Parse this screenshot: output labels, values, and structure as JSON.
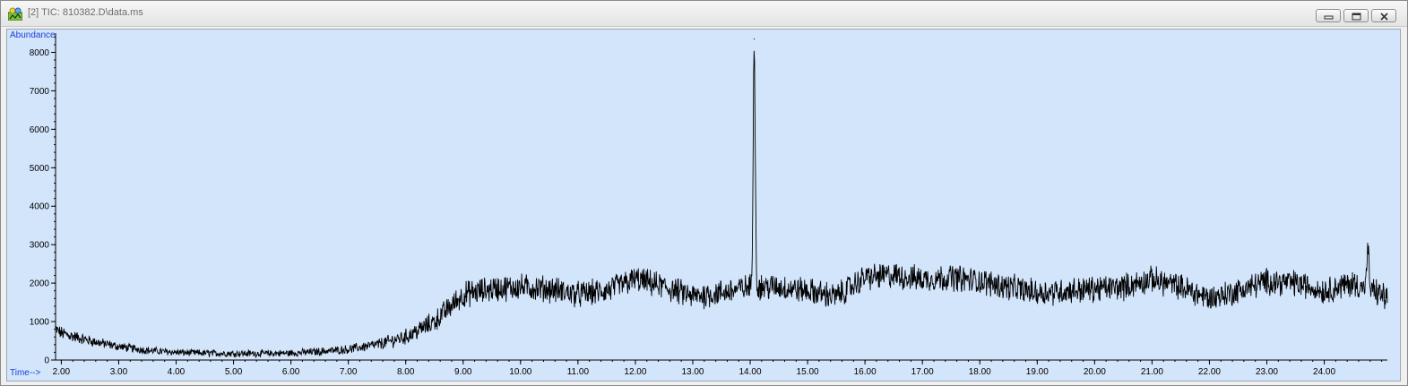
{
  "window": {
    "title": "[2] TIC: 810382.D\\data.ms",
    "icons": [
      "app-chromatogram-icon",
      "minimize-icon",
      "restore-icon",
      "close-icon"
    ]
  },
  "colors": {
    "plot_background": "#d3e5fb",
    "trace": "#000000",
    "axis_label": "#1a3fd6"
  },
  "chart_data": {
    "type": "line",
    "title": "",
    "xlabel": "Time-->",
    "ylabel": "Abundance",
    "xlim": [
      1.9,
      25.1
    ],
    "ylim": [
      0,
      8500
    ],
    "x_ticks": [
      "2.00",
      "3.00",
      "4.00",
      "5.00",
      "6.00",
      "7.00",
      "8.00",
      "9.00",
      "10.00",
      "11.00",
      "12.00",
      "13.00",
      "14.00",
      "15.00",
      "16.00",
      "17.00",
      "18.00",
      "19.00",
      "20.00",
      "21.00",
      "22.00",
      "23.00",
      "24.00"
    ],
    "y_ticks": [
      "0",
      "1000",
      "2000",
      "3000",
      "4000",
      "5000",
      "6000",
      "7000",
      "8000"
    ],
    "grid": false,
    "series": [
      {
        "baseline": {
          "x": [
            1.9,
            2.0,
            2.5,
            3.0,
            3.5,
            4.0,
            4.5,
            5.0,
            5.5,
            6.0,
            6.5,
            7.0,
            7.5,
            8.0,
            8.5,
            9.0,
            9.5,
            10.0,
            10.5,
            11.0,
            11.5,
            12.0,
            12.5,
            13.0,
            13.5,
            14.0,
            14.5,
            15.0,
            15.5,
            16.0,
            16.5,
            17.0,
            17.5,
            18.0,
            18.5,
            19.0,
            19.5,
            20.0,
            20.5,
            21.0,
            21.5,
            22.0,
            22.5,
            23.0,
            23.5,
            24.0,
            24.5,
            25.0,
            25.1
          ],
          "y": [
            800,
            700,
            500,
            350,
            250,
            200,
            180,
            170,
            170,
            180,
            220,
            280,
            400,
            600,
            1000,
            1700,
            1850,
            1900,
            1850,
            1700,
            1800,
            2100,
            1900,
            1650,
            1750,
            1900,
            1900,
            1800,
            1650,
            2150,
            2200,
            2100,
            2150,
            2050,
            1900,
            1750,
            1800,
            1850,
            1900,
            2100,
            1900,
            1600,
            1800,
            2050,
            2000,
            1800,
            2000,
            1700,
            1600
          ],
          "noise_amplitude": [
            150,
            150,
            120,
            100,
            90,
            80,
            80,
            80,
            80,
            80,
            90,
            100,
            130,
            180,
            250,
            300,
            300,
            300,
            300,
            300,
            300,
            300,
            300,
            300,
            300,
            300,
            300,
            300,
            300,
            300,
            300,
            300,
            300,
            300,
            300,
            300,
            300,
            300,
            300,
            300,
            300,
            300,
            300,
            300,
            300,
            300,
            300,
            300,
            300
          ]
        },
        "peaks": [
          {
            "x": 14.07,
            "y": 8350
          },
          {
            "x": 24.76,
            "y": 2900
          }
        ]
      }
    ]
  }
}
